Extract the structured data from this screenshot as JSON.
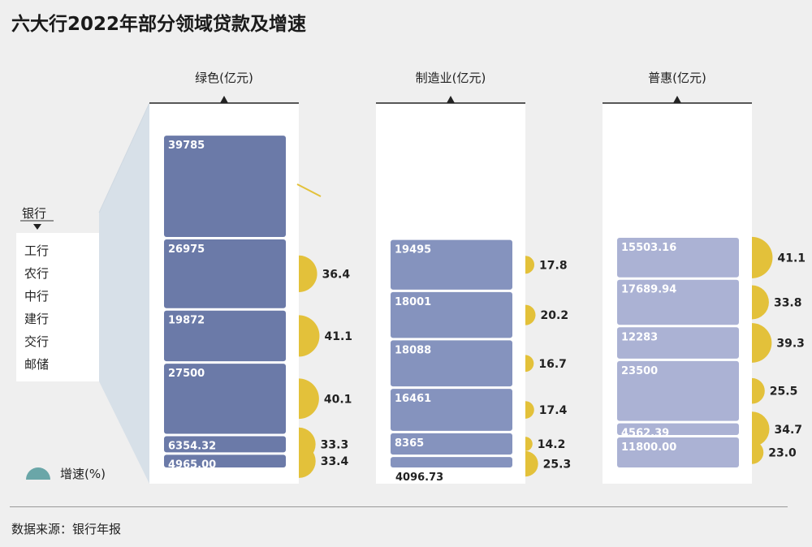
{
  "title": "六大行2022年部分领域贷款及增速",
  "source": "数据来源：银行年报",
  "legend": {
    "bank_header": "银行",
    "banks": [
      "工行",
      "农行",
      "中行",
      "建行",
      "交行",
      "邮储"
    ],
    "growth_label": "增速(%)"
  },
  "colors": {
    "background": "#efefef",
    "panel": "#ffffff",
    "green_bar": "#6b7aa8",
    "manufacturing_bar": "#8593be",
    "inclusive_bar": "#abb2d4",
    "growth": "#e3c13a",
    "legend_dot": "#6aa6a8",
    "funnel": "#d7e0e8"
  },
  "chart_data": [
    {
      "type": "bar",
      "title": "绿色(亿元)",
      "categories": [
        "工行",
        "农行",
        "中行",
        "建行",
        "交行",
        "邮储"
      ],
      "value_labels": [
        "39785",
        "26975",
        "19872",
        "27500",
        "6354.32",
        "4965.00"
      ],
      "values": [
        39785,
        26975,
        19872,
        27500,
        6354.32,
        4965.0
      ],
      "growth": [
        null,
        36.4,
        41.1,
        40.1,
        33.3,
        33.4
      ],
      "growth_labels": [
        "",
        "36.4",
        "41.1",
        "40.1",
        "33.3",
        "33.4"
      ]
    },
    {
      "type": "bar",
      "title": "制造业(亿元)",
      "categories": [
        "工行",
        "农行",
        "中行",
        "建行",
        "交行",
        "邮储"
      ],
      "value_labels": [
        "19495",
        "18001",
        "18088",
        "16461",
        "8365",
        "4096.73"
      ],
      "values": [
        19495,
        18001,
        18088,
        16461,
        8365,
        4096.73
      ],
      "growth": [
        17.8,
        20.2,
        16.7,
        17.4,
        14.2,
        25.3
      ],
      "growth_labels": [
        "17.8",
        "20.2",
        "16.7",
        "17.4",
        "14.2",
        "25.3"
      ]
    },
    {
      "type": "bar",
      "title": "普惠(亿元)",
      "categories": [
        "工行",
        "农行",
        "中行",
        "建行",
        "交行",
        "邮储"
      ],
      "value_labels": [
        "15503.16",
        "17689.94",
        "12283",
        "23500",
        "4562.39",
        "11800.00"
      ],
      "values": [
        15503.16,
        17689.94,
        12283,
        23500,
        4562.39,
        11800.0
      ],
      "growth": [
        41.1,
        33.8,
        39.3,
        25.5,
        34.7,
        23.0
      ],
      "growth_labels": [
        "41.1",
        "33.8",
        "39.3",
        "25.5",
        "34.7",
        "23.0"
      ]
    }
  ]
}
